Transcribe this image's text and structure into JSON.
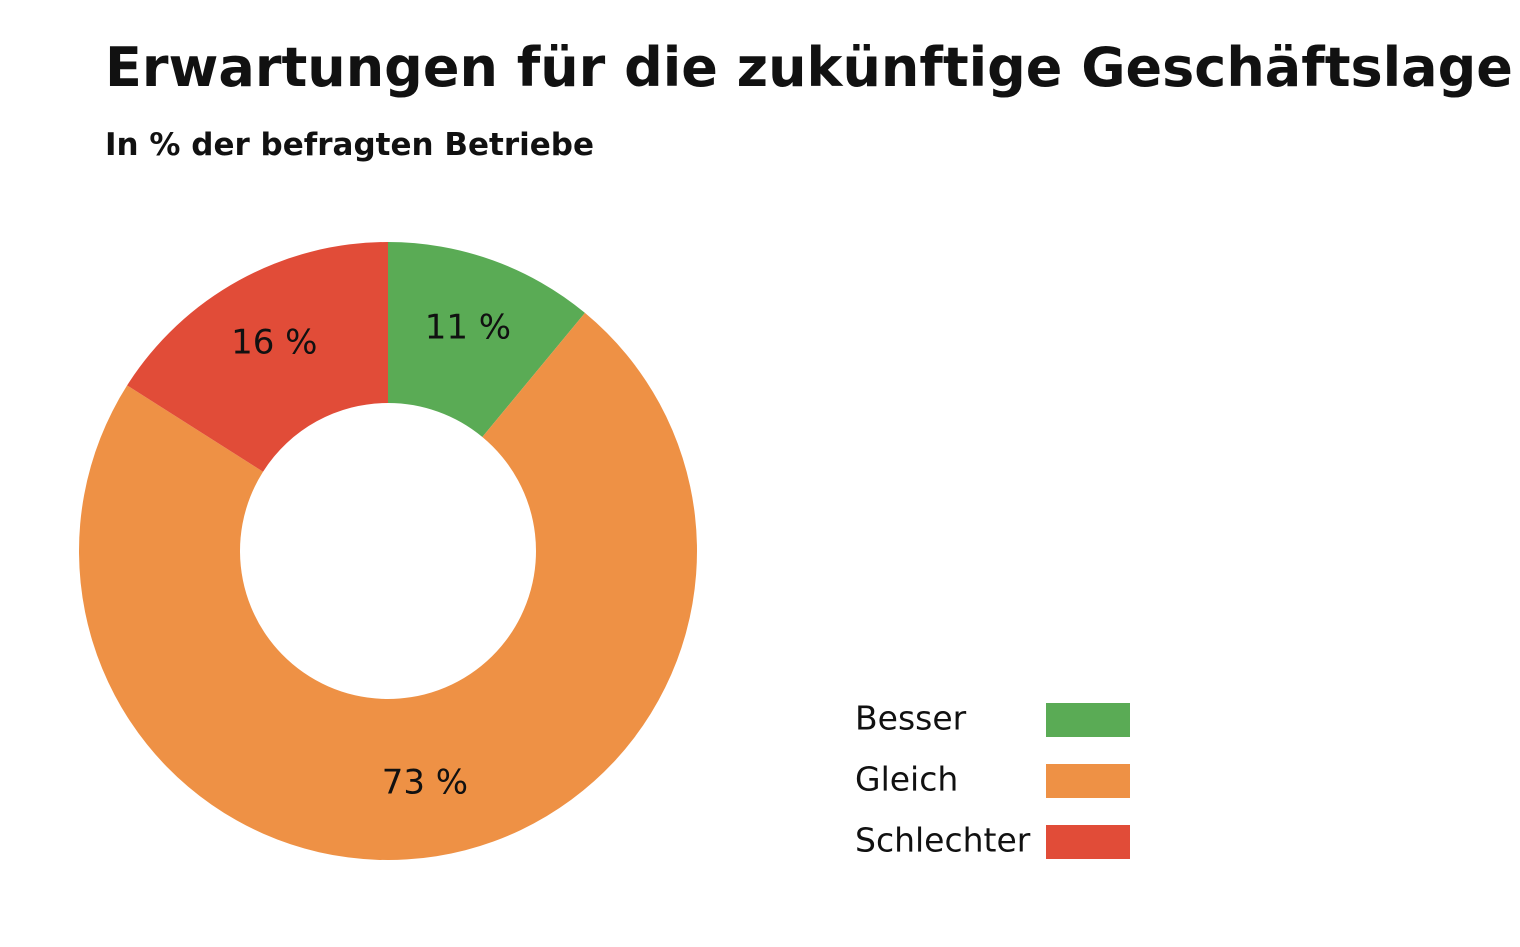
{
  "chart_data": {
    "type": "donut",
    "title": "Erwartungen für die zukünftige Geschäftslage",
    "subtitle": "In % der befragten Betriebe",
    "categories": [
      "Besser",
      "Gleich",
      "Schlechter"
    ],
    "values": [
      11,
      73,
      16
    ],
    "value_labels": [
      "11 %",
      "73 %",
      "16 %"
    ],
    "colors": [
      "#5aab55",
      "#ee9145",
      "#e14c38"
    ]
  }
}
